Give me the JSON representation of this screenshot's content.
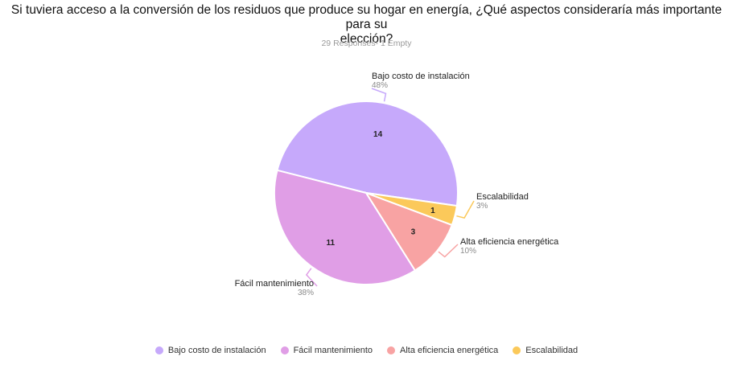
{
  "header": {
    "title_line1": "Si tuviera acceso a la conversión de los residuos que produce su hogar en energía, ¿Qué aspectos consideraría más importante para su",
    "title_line2": "elección?",
    "subtitle": "29 Responses- 1 Empty"
  },
  "chart_data": {
    "type": "pie",
    "title": "Si tuviera acceso a la conversión de los residuos que produce su hogar en energía, ¿Qué aspectos consideraría más importante para su elección?",
    "subtitle": "29 Responses- 1 Empty",
    "categories": [
      "Bajo costo de instalación",
      "Fácil mantenimiento",
      "Alta eficiencia energética",
      "Escalabilidad"
    ],
    "values": [
      14,
      11,
      3,
      1
    ],
    "percent_labels": [
      "48%",
      "38%",
      "10%",
      "3%"
    ],
    "colors": [
      "#c6a9fb",
      "#e09ee6",
      "#f8a3a3",
      "#fbc95a"
    ],
    "legend_position": "bottom"
  }
}
